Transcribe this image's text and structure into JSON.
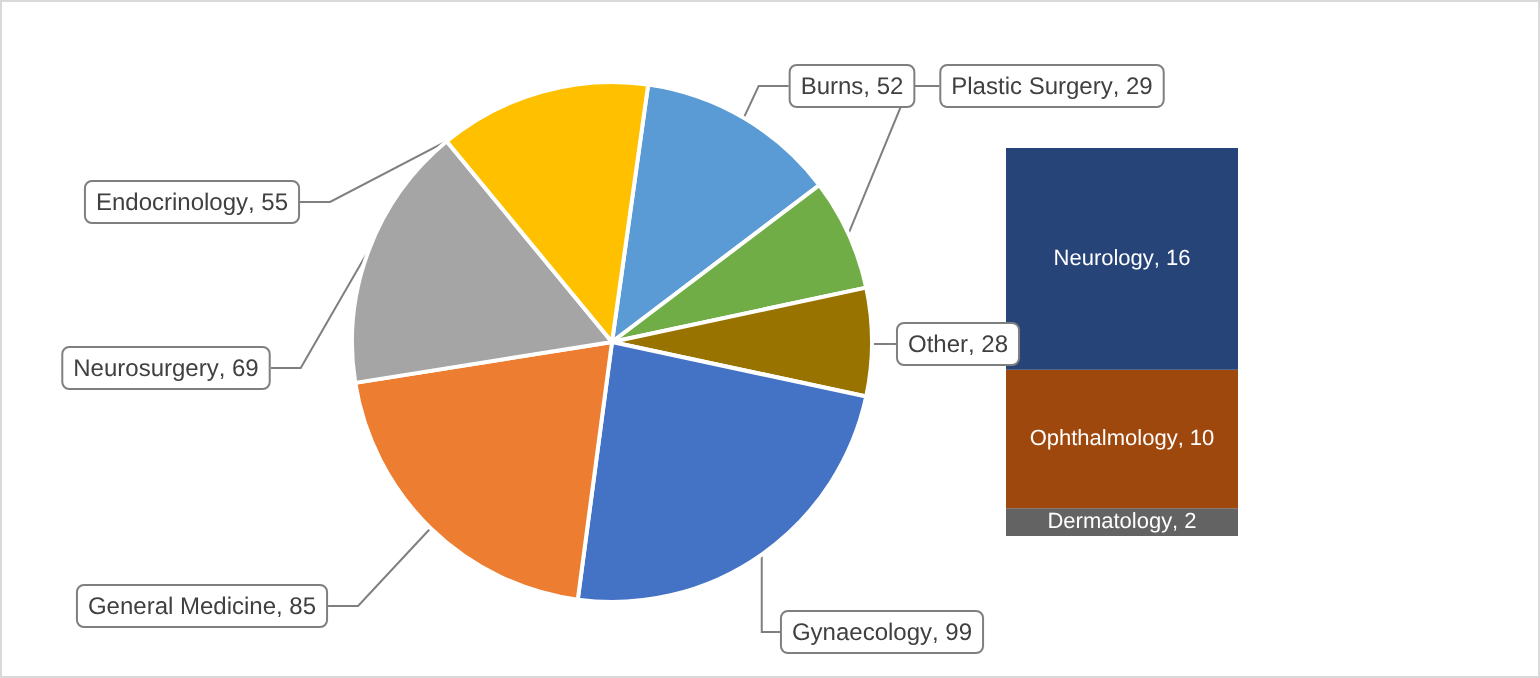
{
  "chart_data": [
    {
      "type": "pie",
      "categories": [
        "Burns",
        "Plastic Surgery",
        "Other",
        "Gynaecology",
        "General Medicine",
        "Neurosurgery",
        "Endocrinology"
      ],
      "values": [
        52,
        29,
        28,
        99,
        85,
        69,
        55
      ],
      "value_labels": [
        ", 52",
        ", 29",
        ", 28",
        ", 99",
        ", 85",
        ", 69",
        ", 55"
      ],
      "colors": [
        "#5b9bd5",
        "#70ad47",
        "#997300",
        "#4472c4",
        "#ed7d31",
        "#a5a5a5",
        "#ffc000"
      ],
      "legend": false
    },
    {
      "type": "bar",
      "stacked": true,
      "categories": [
        null
      ],
      "series": [
        {
          "name": "Dermatology",
          "color": "#636363",
          "values": [
            2
          ],
          "value_labels": [
            ", 2"
          ]
        },
        {
          "name": "Ophthalmology",
          "color": "#9e480e",
          "values": [
            10
          ],
          "value_labels": [
            ", 10"
          ]
        },
        {
          "name": "Neurology",
          "color": "#264478",
          "values": [
            16
          ],
          "value_labels": [
            ", 16"
          ]
        }
      ],
      "tick_labels": false,
      "legend": false
    }
  ]
}
